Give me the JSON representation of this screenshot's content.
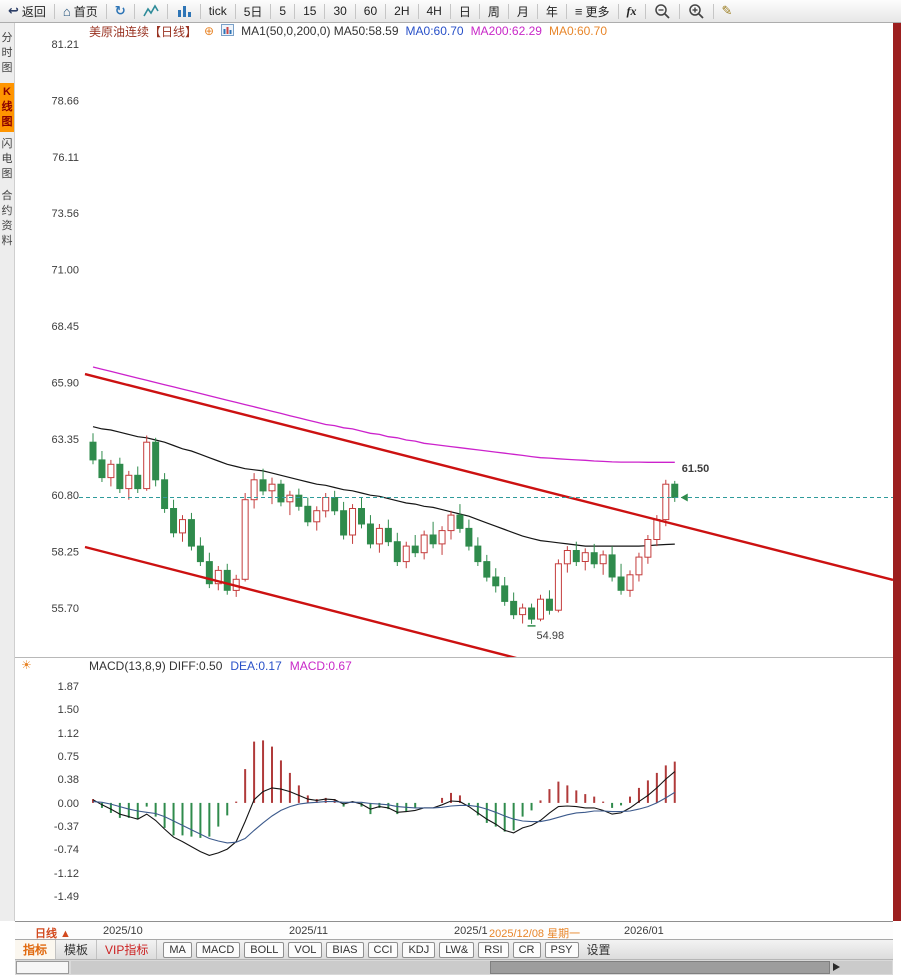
{
  "toolbar": {
    "items": [
      {
        "name": "back-button",
        "icon": "back-arrow",
        "label": "返回"
      },
      {
        "sep": true
      },
      {
        "name": "home-button",
        "icon": "home",
        "label": "首页"
      },
      {
        "sep": true
      },
      {
        "name": "refresh-button",
        "icon": "refresh"
      },
      {
        "sep": true
      },
      {
        "name": "line-chart-button",
        "icon": "area-chart"
      },
      {
        "sep": true
      },
      {
        "name": "candle-chart-button",
        "icon": "bar-chart"
      },
      {
        "sep": true
      },
      {
        "name": "interval-tick-button",
        "label": "tick"
      },
      {
        "sep": true
      },
      {
        "name": "interval-5day-button",
        "label": "5日"
      },
      {
        "sep": true
      },
      {
        "name": "interval-5-button",
        "label": "5"
      },
      {
        "sep": true
      },
      {
        "name": "interval-15-button",
        "label": "15"
      },
      {
        "sep": true
      },
      {
        "name": "interval-30-button",
        "label": "30"
      },
      {
        "sep": true
      },
      {
        "name": "interval-60-button",
        "label": "60"
      },
      {
        "sep": true
      },
      {
        "name": "interval-2h-button",
        "label": "2H"
      },
      {
        "sep": true
      },
      {
        "name": "interval-4h-button",
        "label": "4H"
      },
      {
        "sep": true
      },
      {
        "name": "interval-day-button",
        "label": "日"
      },
      {
        "sep": true
      },
      {
        "name": "interval-week-button",
        "label": "周"
      },
      {
        "sep": true
      },
      {
        "name": "interval-month-button",
        "label": "月"
      },
      {
        "sep": true
      },
      {
        "name": "interval-year-button",
        "label": "年"
      },
      {
        "sep": true
      },
      {
        "name": "more-button",
        "icon": "menu",
        "label": "更多"
      },
      {
        "sep": true
      },
      {
        "name": "formula-button",
        "label": "fx",
        "italic": true
      },
      {
        "sep": true
      },
      {
        "name": "zoom-out-button",
        "icon": "zoom-out"
      },
      {
        "sep": true
      },
      {
        "name": "zoom-in-button",
        "icon": "zoom-in"
      },
      {
        "sep": true
      },
      {
        "name": "draw-button",
        "icon": "pen"
      }
    ]
  },
  "sidebar": {
    "items": [
      {
        "name": "sidebar-item-time-chart",
        "label": "分时图",
        "active": false
      },
      {
        "name": "sidebar-item-kline-chart",
        "label": "K线图",
        "active": true
      },
      {
        "name": "sidebar-item-flash-chart",
        "label": "闪电图",
        "active": false
      },
      {
        "name": "sidebar-item-contract-info",
        "label": "合约资料",
        "active": false
      }
    ]
  },
  "chart_header": {
    "items": [
      {
        "name": "symbol-title",
        "text": "美原油连续【日线】",
        "color": "#993322"
      },
      {
        "name": "add-indicator",
        "icon": "plus-circle"
      },
      {
        "name": "indicator-settings",
        "icon": "chart-mini"
      },
      {
        "name": "ma-settings-label",
        "text": "MA1(50,0,200,0)  MA50:58.59",
        "color": "#333333"
      },
      {
        "name": "ma0-blue-label",
        "text": "MA0:60.70",
        "color": "#2850c8"
      },
      {
        "name": "ma200-label",
        "text": "MA200:62.29",
        "color": "#c828c8"
      },
      {
        "name": "ma0-orange-label",
        "text": "MA0:60.70",
        "color": "#e8862a"
      }
    ]
  },
  "macd_header": {
    "items": [
      {
        "name": "macd-params-label",
        "text": "MACD(13,8,9)  DIFF:0.50",
        "color": "#333333"
      },
      {
        "name": "dea-label",
        "text": "DEA:0.17",
        "color": "#2850c8"
      },
      {
        "name": "macd-value-label",
        "text": "MACD:0.67",
        "color": "#c828c8"
      }
    ]
  },
  "x_axis": {
    "items": [
      {
        "name": "period-selector",
        "text": "日线 ▲",
        "style": "period"
      },
      {
        "name": "x-axis-label",
        "text": "2025/10"
      },
      {
        "name": "x-axis-label",
        "text": "2025/11"
      },
      {
        "name": "x-axis-label",
        "text": "2025/1"
      },
      {
        "name": "crosshair-date-label",
        "text": "2025/12/08 星期一",
        "style": "crosshair"
      },
      {
        "name": "x-axis-label",
        "text": "2026/01"
      }
    ]
  },
  "bottom_bar": {
    "tabs": [
      {
        "name": "tab-indicators",
        "label": "指标",
        "style": "active"
      },
      {
        "name": "tab-templates",
        "label": "模板",
        "style": ""
      },
      {
        "name": "tab-vip-indicators",
        "label": "VIP指标",
        "style": "vip"
      }
    ],
    "indicators": [
      "MA",
      "MACD",
      "BOLL",
      "VOL",
      "BIAS",
      "CCI",
      "KDJ",
      "LW&",
      "RSI",
      "CR",
      "PSY"
    ],
    "settings": "设置"
  },
  "colors": {
    "up": "#c43c3c",
    "down": "#2f8b4c",
    "ma50": "#151515",
    "ma200": "#cc22cc",
    "trend": "#cc1111",
    "last_price_line": "#2f9b9b",
    "hist_pos": "#b03a3a",
    "hist_neg": "#2f8b4c",
    "diff_line": "#141414",
    "dea_line": "#3c5a8c",
    "accent_orange": "#e8862a"
  },
  "chart_data": {
    "type": "candlestick",
    "symbol": "美原油连续",
    "period": "日线",
    "price_axis_ticks": [
      81.21,
      78.66,
      76.11,
      73.56,
      71.0,
      68.45,
      65.9,
      63.35,
      60.8,
      58.25,
      55.7
    ],
    "macd_axis_ticks": [
      1.87,
      1.5,
      1.12,
      0.75,
      0.38,
      0.0,
      -0.37,
      -0.74,
      -1.12,
      -1.49
    ],
    "last_price": 60.7,
    "recent_high": 61.5,
    "recent_low": 54.98,
    "ma50_value": 58.59,
    "ma200_value": 62.29,
    "macd_values": {
      "params": "13,8,9",
      "diff": 0.5,
      "dea": 0.17,
      "macd": 0.67
    },
    "candles": [
      [
        63.2,
        63.6,
        62.2,
        62.4
      ],
      [
        62.4,
        62.8,
        61.4,
        61.6
      ],
      [
        61.6,
        62.4,
        61.2,
        62.2
      ],
      [
        62.2,
        62.5,
        60.9,
        61.1
      ],
      [
        61.1,
        61.9,
        60.6,
        61.7
      ],
      [
        61.7,
        62.1,
        60.9,
        61.1
      ],
      [
        61.1,
        63.5,
        61.0,
        63.2
      ],
      [
        63.2,
        63.4,
        61.2,
        61.5
      ],
      [
        61.5,
        61.8,
        60.0,
        60.2
      ],
      [
        60.2,
        60.6,
        58.9,
        59.1
      ],
      [
        59.1,
        59.9,
        58.7,
        59.7
      ],
      [
        59.7,
        60.0,
        58.3,
        58.5
      ],
      [
        58.5,
        58.9,
        57.6,
        57.8
      ],
      [
        57.8,
        58.2,
        56.6,
        56.8
      ],
      [
        56.8,
        57.6,
        56.5,
        57.4
      ],
      [
        57.4,
        57.7,
        56.3,
        56.5
      ],
      [
        56.5,
        57.2,
        56.2,
        57.0
      ],
      [
        57.0,
        60.9,
        56.9,
        60.6
      ],
      [
        60.6,
        61.8,
        60.2,
        61.5
      ],
      [
        61.5,
        62.0,
        60.8,
        61.0
      ],
      [
        61.0,
        61.6,
        60.4,
        61.3
      ],
      [
        61.3,
        61.5,
        60.3,
        60.5
      ],
      [
        60.5,
        61.0,
        59.9,
        60.8
      ],
      [
        60.8,
        61.1,
        60.1,
        60.3
      ],
      [
        60.3,
        60.7,
        59.4,
        59.6
      ],
      [
        59.6,
        60.3,
        59.2,
        60.1
      ],
      [
        60.1,
        60.9,
        59.8,
        60.7
      ],
      [
        60.7,
        61.0,
        59.9,
        60.1
      ],
      [
        60.1,
        60.5,
        58.8,
        59.0
      ],
      [
        59.0,
        60.4,
        58.6,
        60.2
      ],
      [
        60.2,
        60.7,
        59.3,
        59.5
      ],
      [
        59.5,
        59.9,
        58.4,
        58.6
      ],
      [
        58.6,
        59.5,
        58.2,
        59.3
      ],
      [
        59.3,
        59.7,
        58.5,
        58.7
      ],
      [
        58.7,
        59.1,
        57.6,
        57.8
      ],
      [
        57.8,
        58.7,
        57.5,
        58.5
      ],
      [
        58.5,
        59.0,
        58.0,
        58.2
      ],
      [
        58.2,
        59.2,
        57.9,
        59.0
      ],
      [
        59.0,
        59.6,
        58.4,
        58.6
      ],
      [
        58.6,
        59.4,
        58.1,
        59.2
      ],
      [
        59.2,
        60.1,
        58.8,
        59.9
      ],
      [
        59.9,
        60.4,
        59.1,
        59.3
      ],
      [
        59.3,
        59.7,
        58.3,
        58.5
      ],
      [
        58.5,
        58.9,
        57.6,
        57.8
      ],
      [
        57.8,
        58.1,
        56.9,
        57.1
      ],
      [
        57.1,
        57.5,
        56.4,
        56.7
      ],
      [
        56.7,
        57.1,
        55.8,
        56.0
      ],
      [
        56.0,
        56.4,
        55.2,
        55.4
      ],
      [
        55.4,
        55.9,
        55.0,
        55.7
      ],
      [
        55.7,
        55.9,
        54.98,
        55.2
      ],
      [
        55.2,
        56.3,
        55.1,
        56.1
      ],
      [
        56.1,
        56.5,
        55.4,
        55.6
      ],
      [
        55.6,
        57.9,
        55.5,
        57.7
      ],
      [
        57.7,
        58.5,
        57.3,
        58.3
      ],
      [
        58.3,
        58.7,
        57.6,
        57.8
      ],
      [
        57.8,
        58.4,
        57.4,
        58.2
      ],
      [
        58.2,
        58.6,
        57.5,
        57.7
      ],
      [
        57.7,
        58.3,
        57.2,
        58.1
      ],
      [
        58.1,
        58.5,
        56.9,
        57.1
      ],
      [
        57.1,
        57.7,
        56.3,
        56.5
      ],
      [
        56.5,
        57.4,
        56.2,
        57.2
      ],
      [
        57.2,
        58.2,
        56.9,
        58.0
      ],
      [
        58.0,
        59.0,
        57.7,
        58.8
      ],
      [
        58.8,
        59.9,
        58.5,
        59.7
      ],
      [
        59.7,
        61.5,
        59.4,
        61.3
      ],
      [
        61.3,
        61.45,
        60.5,
        60.7
      ]
    ],
    "ma50": [
      63.9,
      63.8,
      63.75,
      63.65,
      63.55,
      63.45,
      63.4,
      63.3,
      63.2,
      63.05,
      62.9,
      62.8,
      62.65,
      62.5,
      62.35,
      62.2,
      62.1,
      62.0,
      61.95,
      61.9,
      61.8,
      61.7,
      61.6,
      61.5,
      61.4,
      61.3,
      61.25,
      61.15,
      61.05,
      61.0,
      60.9,
      60.8,
      60.75,
      60.65,
      60.55,
      60.45,
      60.4,
      60.3,
      60.25,
      60.15,
      60.05,
      59.95,
      59.85,
      59.7,
      59.55,
      59.4,
      59.25,
      59.1,
      58.95,
      58.85,
      58.75,
      58.7,
      58.65,
      58.6,
      58.55,
      58.5,
      58.5,
      58.5,
      58.5,
      58.5,
      58.5,
      58.5,
      58.52,
      58.55,
      58.57,
      58.59
    ],
    "ma200": [
      66.6,
      66.5,
      66.4,
      66.3,
      66.2,
      66.1,
      66.0,
      65.9,
      65.8,
      65.7,
      65.6,
      65.5,
      65.4,
      65.3,
      65.2,
      65.1,
      65.0,
      64.9,
      64.8,
      64.7,
      64.6,
      64.5,
      64.4,
      64.3,
      64.2,
      64.1,
      64.0,
      63.95,
      63.85,
      63.8,
      63.7,
      63.6,
      63.55,
      63.45,
      63.4,
      63.3,
      63.25,
      63.15,
      63.1,
      63.05,
      63.0,
      62.95,
      62.9,
      62.85,
      62.8,
      62.75,
      62.7,
      62.65,
      62.6,
      62.55,
      62.5,
      62.48,
      62.45,
      62.42,
      62.4,
      62.38,
      62.35,
      62.33,
      62.31,
      62.3,
      62.3,
      62.3,
      62.29,
      62.29,
      62.29,
      62.29
    ],
    "macd_diff": [
      0.05,
      -0.03,
      -0.1,
      -0.18,
      -0.22,
      -0.26,
      -0.18,
      -0.28,
      -0.42,
      -0.55,
      -0.62,
      -0.7,
      -0.78,
      -0.84,
      -0.8,
      -0.74,
      -0.62,
      -0.3,
      0.05,
      0.18,
      0.24,
      0.22,
      0.18,
      0.12,
      0.06,
      0.04,
      0.06,
      0.05,
      -0.02,
      0.02,
      -0.02,
      -0.1,
      -0.06,
      -0.08,
      -0.15,
      -0.14,
      -0.12,
      -0.08,
      -0.08,
      -0.03,
      0.03,
      0.02,
      -0.06,
      -0.16,
      -0.26,
      -0.34,
      -0.44,
      -0.48,
      -0.4,
      -0.36,
      -0.28,
      -0.16,
      -0.06,
      -0.05,
      -0.06,
      -0.08,
      -0.08,
      -0.12,
      -0.18,
      -0.16,
      -0.08,
      0.02,
      0.12,
      0.24,
      0.38,
      0.5
    ],
    "macd_dea": [
      0.02,
      0.01,
      -0.02,
      -0.06,
      -0.1,
      -0.13,
      -0.15,
      -0.17,
      -0.22,
      -0.29,
      -0.36,
      -0.43,
      -0.5,
      -0.57,
      -0.61,
      -0.64,
      -0.63,
      -0.57,
      -0.44,
      -0.32,
      -0.21,
      -0.12,
      -0.06,
      -0.02,
      0.0,
      0.01,
      0.02,
      0.02,
      0.01,
      0.01,
      0.01,
      -0.01,
      -0.02,
      -0.03,
      -0.06,
      -0.07,
      -0.08,
      -0.08,
      -0.08,
      -0.07,
      -0.05,
      -0.04,
      -0.04,
      -0.06,
      -0.1,
      -0.15,
      -0.21,
      -0.26,
      -0.29,
      -0.3,
      -0.3,
      -0.27,
      -0.23,
      -0.19,
      -0.16,
      -0.15,
      -0.13,
      -0.13,
      -0.14,
      -0.14,
      -0.13,
      -0.1,
      -0.06,
      0.0,
      0.08,
      0.17
    ],
    "trendlines": [
      {
        "x1": 0,
        "p1": 66.28,
        "x2": 1.0,
        "p2": 56.97
      },
      {
        "x1": 0,
        "p1": 58.46,
        "x2": 0.558,
        "p2": 53.21
      }
    ]
  }
}
